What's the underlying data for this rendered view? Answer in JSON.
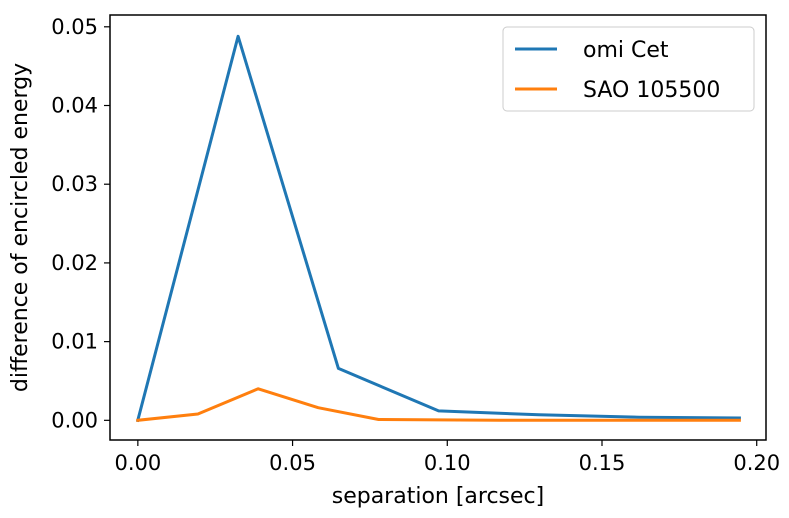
{
  "chart_data": {
    "type": "line",
    "title": "",
    "xlabel": "separation [arcsec]",
    "ylabel": "difference of encircled energy",
    "xlim": [
      -0.009,
      0.203
    ],
    "ylim": [
      -0.0025,
      0.0515
    ],
    "xticks": [
      0.0,
      0.05,
      0.1,
      0.15,
      0.2
    ],
    "xtick_labels": [
      "0.00",
      "0.05",
      "0.10",
      "0.15",
      "0.20"
    ],
    "yticks": [
      0.0,
      0.01,
      0.02,
      0.03,
      0.04,
      0.05
    ],
    "ytick_labels": [
      "0.00",
      "0.01",
      "0.02",
      "0.03",
      "0.04",
      "0.05"
    ],
    "grid": false,
    "legend_position": "top-right",
    "series": [
      {
        "name": "omi Cet",
        "color": "#1f77b4",
        "x": [
          0.0,
          0.0324,
          0.0648,
          0.0972,
          0.1296,
          0.162,
          0.1944
        ],
        "y": [
          0.0,
          0.0488,
          0.0066,
          0.0012,
          0.0007,
          0.0004,
          0.0003
        ]
      },
      {
        "name": "SAO 105500",
        "color": "#ff7f0e",
        "x": [
          0.0,
          0.0194,
          0.0389,
          0.0583,
          0.0778,
          0.0972,
          0.1167,
          0.1361,
          0.1556,
          0.175,
          0.1944
        ],
        "y": [
          0.0,
          0.0008,
          0.004,
          0.0016,
          0.0001,
          5e-05,
          0.0,
          0.0,
          0.0,
          0.0,
          0.0
        ]
      }
    ]
  }
}
